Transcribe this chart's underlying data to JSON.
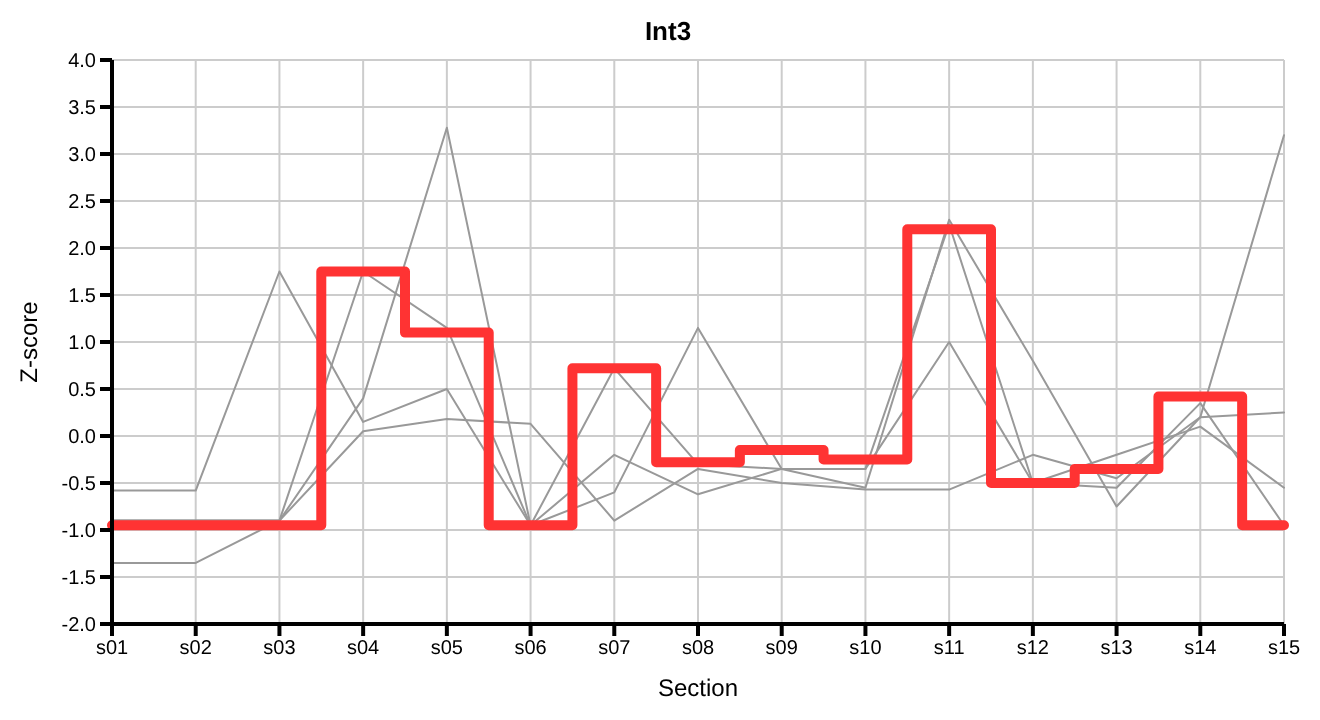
{
  "chart_data": {
    "type": "line",
    "title": "Int3",
    "xlabel": "Section",
    "ylabel": "Z-score",
    "categories": [
      "s01",
      "s02",
      "s03",
      "s04",
      "s05",
      "s06",
      "s07",
      "s08",
      "s09",
      "s10",
      "s11",
      "s12",
      "s13",
      "s14",
      "s15"
    ],
    "series": [
      {
        "color": "#999999",
        "values": [
          -0.9,
          -0.9,
          -0.9,
          0.4,
          3.28,
          -0.95,
          -0.6,
          1.15,
          -0.35,
          -0.55,
          2.3,
          0.8,
          -0.75,
          0.2,
          3.2
        ]
      },
      {
        "color": "#999999",
        "values": [
          -0.58,
          -0.58,
          1.75,
          0.15,
          0.5,
          -0.95,
          0.72,
          -0.3,
          -0.35,
          -0.35,
          2.25,
          -0.5,
          -0.55,
          0.35,
          -0.95
        ]
      },
      {
        "color": "#999999",
        "values": [
          -1.35,
          -1.35,
          -0.9,
          1.75,
          1.15,
          -0.95,
          -0.2,
          -0.62,
          -0.35,
          -0.35,
          1.0,
          -0.5,
          -0.2,
          0.1,
          -0.55
        ]
      },
      {
        "color": "#999999",
        "values": [
          -0.9,
          -0.9,
          -0.9,
          0.05,
          0.18,
          0.13,
          -0.9,
          -0.35,
          -0.5,
          -0.57,
          -0.57,
          -0.2,
          -0.45,
          0.2,
          0.25
        ]
      },
      {
        "type": "step",
        "color": "#ff3333",
        "values": [
          -0.95,
          -0.95,
          -0.95,
          1.75,
          1.1,
          -0.95,
          0.72,
          -0.28,
          -0.15,
          -0.25,
          2.2,
          -0.5,
          -0.35,
          0.42,
          -0.95
        ]
      }
    ],
    "ylim": [
      -2,
      4
    ],
    "yticks": [
      {
        "value": -2,
        "label": "-2.0"
      },
      {
        "value": -1.5,
        "label": "-1.5"
      },
      {
        "value": -1,
        "label": "-1.0"
      },
      {
        "value": -0.5,
        "label": "-0.5"
      },
      {
        "value": 0,
        "label": "0.0"
      },
      {
        "value": 0.5,
        "label": "0.5"
      },
      {
        "value": 1,
        "label": "1.0"
      },
      {
        "value": 1.5,
        "label": "1.5"
      },
      {
        "value": 2,
        "label": "2.0"
      },
      {
        "value": 2.5,
        "label": "2.5"
      },
      {
        "value": 3,
        "label": "3.0"
      },
      {
        "value": 3.5,
        "label": "3.5"
      },
      {
        "value": 4,
        "label": "4.0"
      }
    ],
    "grid": true,
    "legend": false,
    "marker": "none"
  }
}
